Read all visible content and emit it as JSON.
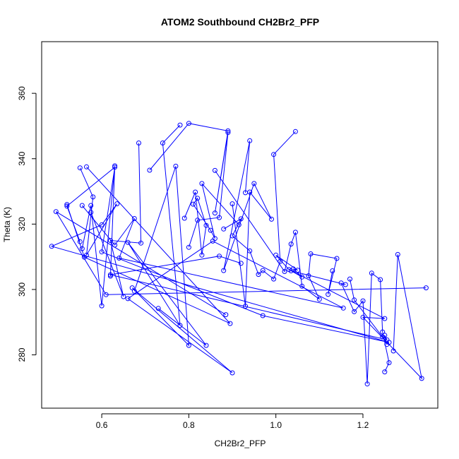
{
  "chart_data": {
    "type": "line",
    "title": "ATOM2 Southbound CH2Br2_PFP",
    "xlabel": "CH2Br2_PFP",
    "ylabel": "Theta (K)",
    "xlim": [
      0.462,
      1.372
    ],
    "ylim": [
      263.7,
      375.8
    ],
    "xticks": [
      0.6,
      0.8,
      1.0,
      1.2
    ],
    "yticks": [
      280,
      300,
      320,
      340,
      360
    ],
    "xtick_labels": [
      "0.6",
      "0.8",
      "1.0",
      "1.2"
    ],
    "ytick_labels": [
      "280",
      "300",
      "320",
      "340",
      "360"
    ],
    "grid": false,
    "legend": "none",
    "series": [
      {
        "color": "#0000ff",
        "marker": "open-circle",
        "points": [
          [
            0.55,
            337.2
          ],
          [
            0.58,
            328.3
          ],
          [
            0.565,
            310.5
          ],
          [
            0.635,
            326.2
          ],
          [
            0.6,
            319.8
          ],
          [
            0.485,
            313.2
          ],
          [
            1.26,
            283.8
          ],
          [
            0.97,
            292.0
          ],
          [
            0.6,
            311.5
          ],
          [
            0.63,
            337.4
          ],
          [
            0.52,
            325.5
          ],
          [
            0.55,
            314.6
          ],
          [
            1.345,
            300.5
          ],
          [
            0.61,
            298.4
          ],
          [
            0.495,
            323.8
          ],
          [
            0.885,
            292.3
          ],
          [
            0.52,
            326.0
          ],
          [
            0.56,
            309.9
          ],
          [
            0.895,
            289.6
          ],
          [
            0.565,
            337.5
          ],
          [
            0.555,
            312.5
          ],
          [
            0.575,
            325.7
          ],
          [
            0.6,
            295.0
          ],
          [
            0.63,
            337.8
          ],
          [
            0.62,
            304.1
          ],
          [
            0.685,
            344.8
          ],
          [
            0.69,
            314.2
          ],
          [
            0.62,
            315.0
          ],
          [
            0.65,
            297.8
          ],
          [
            0.575,
            323.6
          ],
          [
            0.555,
            325.7
          ],
          [
            0.63,
            313.6
          ],
          [
            0.675,
            321.7
          ],
          [
            0.64,
            309.6
          ],
          [
            1.155,
            294.3
          ],
          [
            0.855,
            314.8
          ],
          [
            0.66,
            297.2
          ],
          [
            0.9,
            274.5
          ],
          [
            0.67,
            300.5
          ],
          [
            0.8,
            282.9
          ],
          [
            0.77,
            337.7
          ],
          [
            0.675,
            299.5
          ],
          [
            0.73,
            294.2
          ],
          [
            0.84,
            282.9
          ],
          [
            0.66,
            314.4
          ],
          [
            0.78,
            289.0
          ],
          [
            0.74,
            344.8
          ],
          [
            0.78,
            350.3
          ],
          [
            0.71,
            336.5
          ],
          [
            0.8,
            350.8
          ],
          [
            0.89,
            348.5
          ],
          [
            0.86,
            323.4
          ],
          [
            0.89,
            348.0
          ],
          [
            0.87,
            322.0
          ],
          [
            0.82,
            321.2
          ],
          [
            0.8,
            312.9
          ],
          [
            0.79,
            321.8
          ],
          [
            0.815,
            329.8
          ],
          [
            0.83,
            310.5
          ],
          [
            0.84,
            319.6
          ],
          [
            0.82,
            327.9
          ],
          [
            0.81,
            326.1
          ],
          [
            0.85,
            318.1
          ],
          [
            0.86,
            315.6
          ],
          [
            0.83,
            332.4
          ],
          [
            0.915,
            319.8
          ],
          [
            0.93,
            329.6
          ],
          [
            0.94,
            345.5
          ],
          [
            0.88,
            305.8
          ],
          [
            0.95,
            332.4
          ],
          [
            0.99,
            321.5
          ],
          [
            0.94,
            329.8
          ],
          [
            0.93,
            294.9
          ],
          [
            0.9,
            326.2
          ],
          [
            0.88,
            318.5
          ],
          [
            0.92,
            321.6
          ],
          [
            0.9,
            316.4
          ],
          [
            0.94,
            311.8
          ],
          [
            0.96,
            304.6
          ],
          [
            0.97,
            305.8
          ],
          [
            0.995,
            303.2
          ],
          [
            1.01,
            308.6
          ],
          [
            0.995,
            341.3
          ],
          [
            1.045,
            348.3
          ],
          [
            0.86,
            336.4
          ],
          [
            1.02,
            305.5
          ],
          [
            1.035,
            313.9
          ],
          [
            1.045,
            317.5
          ],
          [
            1.06,
            301.0
          ],
          [
            1.1,
            297.0
          ],
          [
            1.075,
            304.2
          ],
          [
            1.08,
            310.9
          ],
          [
            1.14,
            309.5
          ],
          [
            1.12,
            298.5
          ],
          [
            1.13,
            305.7
          ],
          [
            1.15,
            302.0
          ],
          [
            1.18,
            293.2
          ],
          [
            1.2,
            296.5
          ],
          [
            1.21,
            271.1
          ],
          [
            1.22,
            305.0
          ],
          [
            1.24,
            303.0
          ],
          [
            1.245,
            287.0
          ],
          [
            1.26,
            277.6
          ],
          [
            1.25,
            274.8
          ],
          [
            1.27,
            281.2
          ],
          [
            1.28,
            310.7
          ],
          [
            1.335,
            272.8
          ],
          [
            1.2,
            291.5
          ],
          [
            1.25,
            291.1
          ],
          [
            1.03,
            306.1
          ],
          [
            1.0,
            310.5
          ],
          [
            1.05,
            305.9
          ],
          [
            1.04,
            306.3
          ],
          [
            1.06,
            303.8
          ],
          [
            1.035,
            305.7
          ],
          [
            1.16,
            301.5
          ],
          [
            1.17,
            303.2
          ],
          [
            1.18,
            296.8
          ],
          [
            1.245,
            285.5
          ],
          [
            1.255,
            283.2
          ],
          [
            1.25,
            286.0
          ],
          [
            1.255,
            284.6
          ],
          [
            0.62,
            304.5
          ],
          [
            0.87,
            310.2
          ],
          [
            0.92,
            308.0
          ]
        ]
      }
    ],
    "segments": [
      [
        0,
        12
      ],
      [
        12,
        16
      ],
      [
        16,
        20
      ],
      [
        20,
        25
      ],
      [
        25,
        30
      ],
      [
        30,
        42
      ],
      [
        42,
        48
      ],
      [
        48,
        56
      ],
      [
        56,
        66
      ],
      [
        66,
        74
      ],
      [
        74,
        84
      ],
      [
        84,
        95
      ],
      [
        95,
        104
      ],
      [
        104,
        116
      ],
      [
        116,
        128
      ]
    ]
  }
}
